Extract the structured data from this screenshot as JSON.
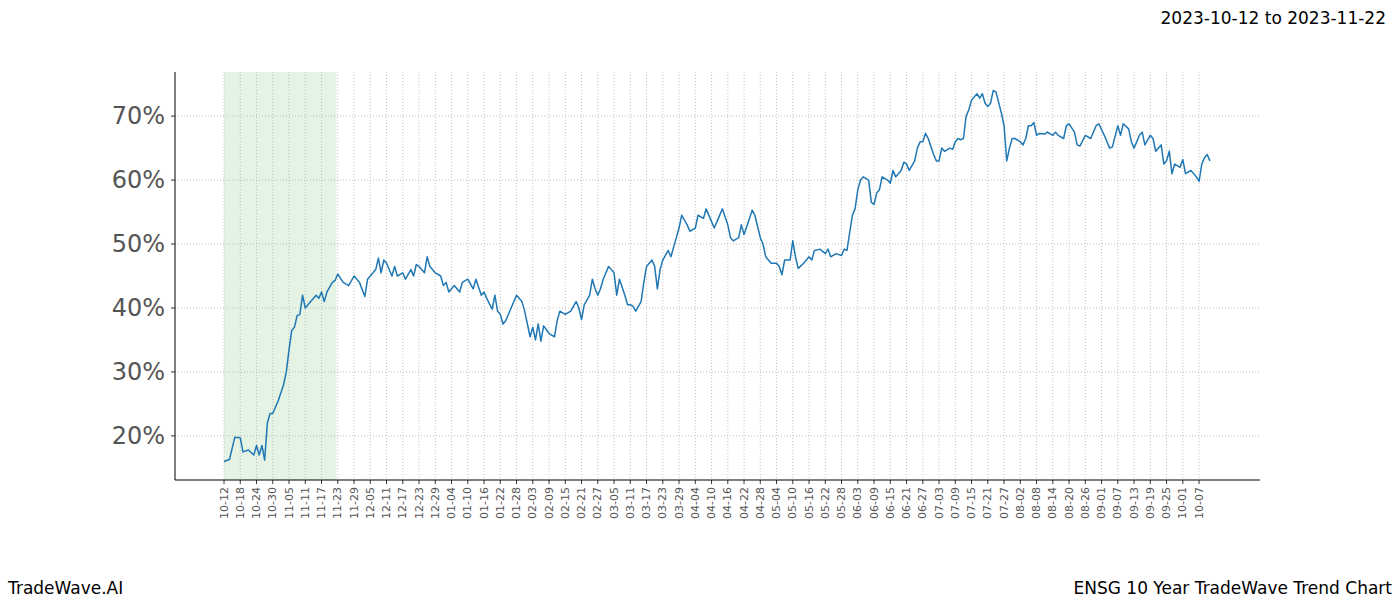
{
  "chart_data": {
    "type": "line",
    "title": "2023-10-12 to 2023-11-22",
    "source": "TradeWave.AI",
    "caption": "ENSG 10 Year TradeWave Trend Chart",
    "color": "#1f77b4",
    "grid": true,
    "highlight_x": [
      0,
      41.5
    ],
    "xlim": [
      -18.1,
      382.5
    ],
    "ylim": [
      13.1,
      76.9
    ],
    "yticks": [
      {
        "value": 20,
        "label": "20%"
      },
      {
        "value": 30,
        "label": "30%"
      },
      {
        "value": 40,
        "label": "40%"
      },
      {
        "value": 50,
        "label": "50%"
      },
      {
        "value": 60,
        "label": "60%"
      },
      {
        "value": 70,
        "label": "70%"
      }
    ],
    "xticks": [
      {
        "value": 0,
        "label": "10-12"
      },
      {
        "value": 6,
        "label": "10-18"
      },
      {
        "value": 12,
        "label": "10-24"
      },
      {
        "value": 18,
        "label": "10-30"
      },
      {
        "value": 24,
        "label": "11-05"
      },
      {
        "value": 30,
        "label": "11-11"
      },
      {
        "value": 36,
        "label": "11-17"
      },
      {
        "value": 42,
        "label": "11-23"
      },
      {
        "value": 48,
        "label": "11-29"
      },
      {
        "value": 54,
        "label": "12-05"
      },
      {
        "value": 60,
        "label": "12-11"
      },
      {
        "value": 66,
        "label": "12-17"
      },
      {
        "value": 72,
        "label": "12-23"
      },
      {
        "value": 78,
        "label": "12-29"
      },
      {
        "value": 84,
        "label": "01-04"
      },
      {
        "value": 90,
        "label": "01-10"
      },
      {
        "value": 96,
        "label": "01-16"
      },
      {
        "value": 102,
        "label": "01-22"
      },
      {
        "value": 108,
        "label": "01-28"
      },
      {
        "value": 114,
        "label": "02-03"
      },
      {
        "value": 120,
        "label": "02-09"
      },
      {
        "value": 126,
        "label": "02-15"
      },
      {
        "value": 132,
        "label": "02-21"
      },
      {
        "value": 138,
        "label": "02-27"
      },
      {
        "value": 144,
        "label": "03-05"
      },
      {
        "value": 150,
        "label": "03-11"
      },
      {
        "value": 156,
        "label": "03-17"
      },
      {
        "value": 162,
        "label": "03-23"
      },
      {
        "value": 168,
        "label": "03-29"
      },
      {
        "value": 174,
        "label": "04-04"
      },
      {
        "value": 180,
        "label": "04-10"
      },
      {
        "value": 186,
        "label": "04-16"
      },
      {
        "value": 192,
        "label": "04-22"
      },
      {
        "value": 198,
        "label": "04-28"
      },
      {
        "value": 204,
        "label": "05-04"
      },
      {
        "value": 210,
        "label": "05-10"
      },
      {
        "value": 216,
        "label": "05-16"
      },
      {
        "value": 222,
        "label": "05-22"
      },
      {
        "value": 228,
        "label": "05-28"
      },
      {
        "value": 234,
        "label": "06-03"
      },
      {
        "value": 240,
        "label": "06-09"
      },
      {
        "value": 246,
        "label": "06-15"
      },
      {
        "value": 252,
        "label": "06-21"
      },
      {
        "value": 258,
        "label": "06-27"
      },
      {
        "value": 264,
        "label": "07-03"
      },
      {
        "value": 270,
        "label": "07-09"
      },
      {
        "value": 276,
        "label": "07-15"
      },
      {
        "value": 282,
        "label": "07-21"
      },
      {
        "value": 288,
        "label": "07-27"
      },
      {
        "value": 294,
        "label": "08-02"
      },
      {
        "value": 300,
        "label": "08-08"
      },
      {
        "value": 306,
        "label": "08-14"
      },
      {
        "value": 312,
        "label": "08-20"
      },
      {
        "value": 318,
        "label": "08-26"
      },
      {
        "value": 324,
        "label": "09-01"
      },
      {
        "value": 330,
        "label": "09-07"
      },
      {
        "value": 336,
        "label": "09-13"
      },
      {
        "value": 342,
        "label": "09-19"
      },
      {
        "value": 348,
        "label": "09-25"
      },
      {
        "value": 354,
        "label": "10-01"
      },
      {
        "value": 360,
        "label": "10-07"
      }
    ],
    "x": [
      0,
      2,
      4,
      6,
      7,
      9,
      11,
      12,
      13,
      14,
      15,
      16,
      17,
      18,
      20,
      22,
      23,
      24,
      25,
      26,
      27,
      28,
      29,
      30,
      32,
      34,
      35,
      36,
      37,
      38,
      40,
      41,
      42,
      44,
      46,
      48,
      50,
      52,
      53,
      54,
      56,
      57,
      58,
      59,
      60,
      62,
      63,
      64,
      66,
      67,
      69,
      70,
      71,
      72,
      74,
      75,
      76,
      78,
      80,
      81,
      82,
      83,
      84,
      85,
      87,
      88,
      90,
      92,
      93,
      95,
      96,
      97,
      99,
      100,
      101,
      102,
      103,
      104,
      106,
      108,
      110,
      111,
      113,
      114,
      115,
      116,
      117,
      118,
      120,
      122,
      123,
      124,
      126,
      128,
      130,
      131,
      132,
      133,
      135,
      136,
      137,
      138,
      139,
      140,
      142,
      143,
      144,
      145,
      146,
      148,
      149,
      150,
      151,
      152,
      154,
      155,
      156,
      158,
      159,
      160,
      161,
      162,
      164,
      165,
      167,
      168,
      169,
      171,
      172,
      174,
      175,
      177,
      178,
      180,
      181,
      182,
      184,
      186,
      187,
      188,
      190,
      191,
      192,
      194,
      195,
      196,
      198,
      199,
      200,
      202,
      204,
      205,
      206,
      207,
      209,
      210,
      211,
      212,
      214,
      216,
      217,
      218,
      220,
      222,
      223,
      224,
      226,
      228,
      229,
      230,
      232,
      233,
      234,
      235,
      236,
      238,
      239,
      240,
      241,
      242,
      243,
      245,
      246,
      247,
      248,
      250,
      251,
      252,
      253,
      255,
      256,
      257,
      258,
      259,
      260,
      262,
      263,
      264,
      265,
      266,
      268,
      269,
      270,
      271,
      272,
      273,
      274,
      275,
      276,
      278,
      279,
      280,
      281,
      282,
      283,
      284,
      285,
      287,
      288,
      289,
      290,
      291,
      292,
      294,
      295,
      296,
      297,
      298,
      299,
      300,
      301,
      303,
      304,
      306,
      307,
      308,
      310,
      311,
      312,
      314,
      315,
      316,
      318,
      320,
      322,
      323,
      325,
      327,
      328,
      330,
      331,
      332,
      334,
      335,
      336,
      338,
      339,
      340,
      342,
      343,
      344,
      346,
      347,
      348,
      349,
      350,
      351,
      353,
      354,
      355,
      357,
      359,
      360,
      361,
      362,
      363,
      364
    ],
    "values": [
      16,
      16.3,
      19.8,
      19.7,
      17.5,
      17.8,
      17,
      18.5,
      17,
      18.5,
      16.2,
      22,
      23.5,
      23.5,
      25.5,
      28,
      30,
      33.5,
      36.5,
      37,
      38.8,
      39,
      42,
      40,
      41,
      42,
      41.5,
      42.5,
      41,
      42.5,
      44,
      44.3,
      45.3,
      44,
      43.5,
      45,
      44,
      41.8,
      44.5,
      45,
      46,
      47.8,
      45.5,
      47.5,
      47,
      45,
      46.5,
      45,
      45.5,
      44.5,
      46,
      45,
      46.8,
      46.5,
      45.5,
      48,
      46.5,
      45.5,
      45,
      43.5,
      44,
      42.5,
      43,
      43.5,
      42.5,
      44,
      44.5,
      43,
      44.5,
      42,
      42.5,
      41.5,
      39.8,
      42,
      39.5,
      39,
      37.5,
      38,
      40,
      42,
      41,
      39.5,
      35.5,
      37,
      35,
      37.5,
      34.8,
      37.2,
      36,
      35.5,
      38,
      39.5,
      39,
      39.5,
      41,
      40,
      38.2,
      40.5,
      42,
      44.5,
      43,
      42,
      43,
      44.5,
      46.5,
      46,
      45.5,
      42,
      44.5,
      42,
      40.5,
      40.5,
      40.3,
      39.5,
      41,
      44,
      46.5,
      47.5,
      46.5,
      43,
      46,
      47.5,
      49,
      48,
      51,
      52.5,
      54.5,
      53,
      52,
      52.5,
      54.5,
      54,
      55.5,
      53.5,
      52.5,
      53.5,
      55.5,
      53,
      51,
      50.5,
      51,
      53,
      51.5,
      54,
      55.3,
      54.5,
      51,
      50,
      48,
      47,
      47,
      46.5,
      45.2,
      47.5,
      47.5,
      50.5,
      48,
      46.2,
      47,
      48,
      47.5,
      49,
      49.2,
      48.5,
      49.2,
      48,
      48.5,
      48.2,
      49.2,
      49,
      54.5,
      55.5,
      58.5,
      60,
      60.5,
      60,
      56.5,
      56.2,
      58,
      58.5,
      60.5,
      60,
      59.5,
      61.5,
      60.5,
      61.5,
      62.8,
      62.5,
      61.5,
      63,
      65,
      66,
      66,
      67.3,
      66.5,
      64,
      63,
      63,
      65,
      64.5,
      65,
      64.8,
      66,
      66.5,
      66.3,
      66.5,
      70,
      71,
      72.5,
      73.5,
      72.8,
      73.5,
      72,
      71.5,
      72,
      74,
      73.8,
      70.5,
      68.5,
      63,
      65,
      66.5,
      66.5,
      66,
      65.5,
      66.5,
      68.5,
      68.5,
      69,
      67,
      67.3,
      67.2,
      67.5,
      67,
      67.5,
      67,
      66.5,
      68.5,
      68.8,
      67.5,
      65.5,
      65.3,
      67,
      66.5,
      68.5,
      68.8,
      67,
      65,
      65.2,
      68.5,
      67,
      68.8,
      68,
      66,
      65,
      67,
      67.5,
      65.5,
      67,
      66.5,
      64.5,
      65.5,
      62.5,
      63,
      64.5,
      61,
      62.5,
      62,
      63.2,
      61,
      61.5,
      60.5,
      59.8,
      62.5,
      63.5,
      64,
      63
    ]
  }
}
